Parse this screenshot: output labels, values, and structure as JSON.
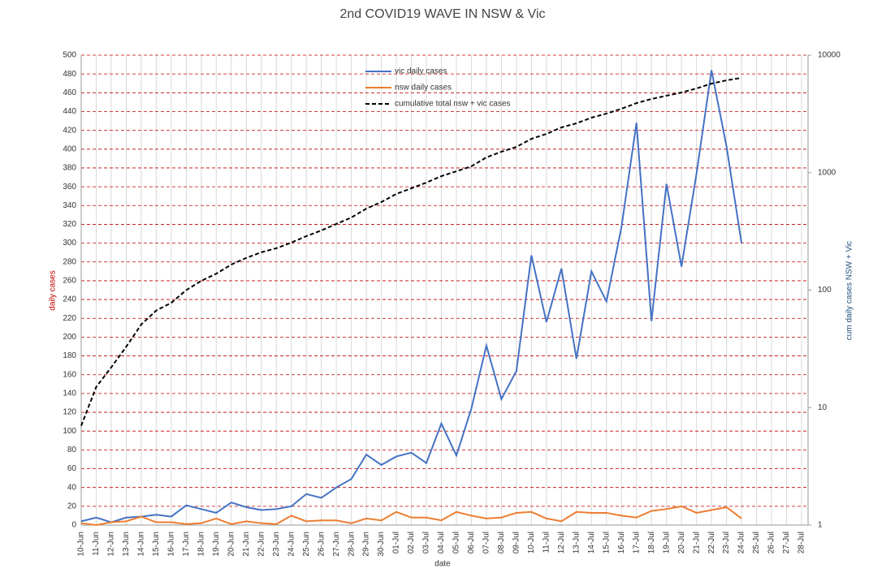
{
  "chart_data": {
    "type": "line",
    "title": "2nd COVID19 WAVE IN NSW & Vic",
    "x_label": "date",
    "y_label": "daily cases",
    "y2_label": "cum daily cases NSW + Vic",
    "categories": [
      "10-Jun",
      "11-Jun",
      "12-Jun",
      "13-Jun",
      "14-Jun",
      "15-Jun",
      "16-Jun",
      "17-Jun",
      "18-Jun",
      "19-Jun",
      "20-Jun",
      "21-Jun",
      "22-Jun",
      "23-Jun",
      "24-Jun",
      "25-Jun",
      "26-Jun",
      "27-Jun",
      "28-Jun",
      "29-Jun",
      "30-Jun",
      "01-Jul",
      "02-Jul",
      "03-Jul",
      "04-Jul",
      "05-Jul",
      "06-Jul",
      "07-Jul",
      "08-Jul",
      "09-Jul",
      "10-Jul",
      "11-Jul",
      "12-Jul",
      "13-Jul",
      "14-Jul",
      "15-Jul",
      "16-Jul",
      "17-Jul",
      "18-Jul",
      "19-Jul",
      "20-Jul",
      "21-Jul",
      "22-Jul",
      "23-Jul",
      "24-Jul",
      "25-Jul",
      "26-Jul",
      "27-Jul",
      "28-Jul"
    ],
    "series": [
      {
        "name": "vic daily cases",
        "color": "#4472c4",
        "dashed": false,
        "values": [
          4,
          8,
          3,
          8,
          9,
          11,
          9,
          21,
          17,
          13,
          24,
          19,
          16,
          17,
          20,
          33,
          29,
          40,
          49,
          75,
          64,
          73,
          77,
          66,
          108,
          74,
          124,
          191,
          134,
          164,
          287,
          216,
          273,
          177,
          270,
          238,
          317,
          428,
          217,
          363,
          275,
          374,
          484,
          403,
          300,
          null,
          null,
          null,
          null
        ]
      },
      {
        "name": "nsw daily cases",
        "color": "#ed7d31",
        "dashed": false,
        "values": [
          2,
          0,
          3,
          4,
          9,
          3,
          3,
          1,
          2,
          7,
          1,
          4,
          2,
          1,
          10,
          4,
          5,
          5,
          2,
          7,
          5,
          14,
          8,
          8,
          5,
          14,
          10,
          7,
          8,
          13,
          14,
          7,
          4,
          14,
          13,
          13,
          10,
          8,
          15,
          17,
          20,
          13,
          16,
          19,
          7,
          null,
          null,
          null,
          null
        ]
      },
      {
        "name": "cumulative total nsw + vic cases",
        "color": "#000000",
        "dashed": true,
        "axis": "y2",
        "values": [
          7,
          15,
          22,
          33,
          51,
          67,
          78,
          100,
          120,
          138,
          165,
          188,
          210,
          227,
          254,
          288,
          322,
          366,
          415,
          494,
          562,
          659,
          736,
          823,
          934,
          1028,
          1132,
          1349,
          1507,
          1656,
          1941,
          2137,
          2427,
          2630,
          2938,
          3183,
          3499,
          3909,
          4236,
          4518,
          4808,
          5210,
          5729,
          6110,
          6412,
          null,
          null,
          null,
          null
        ]
      }
    ],
    "ylim": [
      0,
      500
    ],
    "yticks": [
      0,
      20,
      40,
      60,
      80,
      100,
      120,
      140,
      160,
      180,
      200,
      220,
      240,
      260,
      280,
      300,
      320,
      340,
      360,
      380,
      400,
      420,
      440,
      460,
      480,
      500
    ],
    "y2lim": [
      1,
      10000
    ],
    "y2ticks": [
      1,
      10,
      100,
      1000,
      10000
    ],
    "y2_log": true,
    "grid": true,
    "y_color": "#c00000",
    "y2_color": "#1f4e79",
    "legend": "top"
  }
}
